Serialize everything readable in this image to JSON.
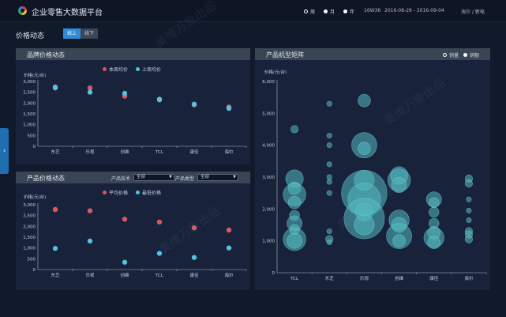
{
  "header": {
    "title": "企业零售大数据平台",
    "periods": [
      {
        "label": "周",
        "selected": true
      },
      {
        "label": "月",
        "selected": false
      },
      {
        "label": "年",
        "selected": false
      }
    ],
    "week_code": "16W36",
    "date_range": "2016-08-29 - 2016-09-04",
    "region": "海尔 / 新电"
  },
  "page": {
    "title": "价格动态",
    "online_label": "线上",
    "offline_label": "线下"
  },
  "colors": {
    "red": "#e0525c",
    "blue": "#4cc4e6",
    "bubble": "#53b9c1"
  },
  "brand_panel": {
    "title": "品牌价格动态",
    "legend_current": "本周均价",
    "legend_last": "上周均价",
    "ylabel": "价格(元/台)"
  },
  "product_panel": {
    "title": "产品价格动态",
    "tech_label": "产品技术",
    "tech_value": "全部",
    "type_label": "产品类型",
    "type_value": "全部",
    "legend_avg": "平均价格",
    "legend_min": "最低价格",
    "ylabel": "价格(元/台)"
  },
  "matrix_panel": {
    "title": "产品机型矩阵",
    "legend_sales": "销量",
    "legend_amount": "销额",
    "ylabel": "价格(元/台)"
  },
  "watermark": "奥维万象出品",
  "chart_data": [
    {
      "type": "scatter",
      "title": "品牌价格动态",
      "ylabel": "价格(元/台)",
      "ylim": [
        0,
        3000
      ],
      "yticks": [
        "0",
        "500",
        "1,000",
        "1,500",
        "2,000",
        "2,500",
        "3,000"
      ],
      "categories": [
        "东芝",
        "乐视",
        "创维",
        "TCL",
        "康佳",
        "海尔"
      ],
      "series": [
        {
          "name": "本周均价",
          "values": [
            2750,
            2700,
            2320,
            2180,
            1920,
            1820
          ]
        },
        {
          "name": "上周均价",
          "values": [
            2700,
            2500,
            2450,
            2150,
            1950,
            1750
          ]
        }
      ]
    },
    {
      "type": "scatter",
      "title": "产品价格动态",
      "ylabel": "价格(元/台)",
      "ylim": [
        0,
        3000
      ],
      "yticks": [
        "0",
        "500",
        "1,000",
        "1,500",
        "2,000",
        "2,500",
        "3,000"
      ],
      "categories": [
        "东芝",
        "乐视",
        "创维",
        "TCL",
        "康佳",
        "海尔"
      ],
      "series": [
        {
          "name": "平均价格",
          "values": [
            2780,
            2720,
            2330,
            2200,
            1930,
            1830
          ]
        },
        {
          "name": "最低价格",
          "values": [
            980,
            1320,
            340,
            750,
            560,
            1000
          ]
        }
      ]
    },
    {
      "type": "scatter",
      "title": "产品机型矩阵",
      "ylabel": "价格(元/台)",
      "ylim": [
        0,
        6000
      ],
      "yticks": [
        "0",
        "1,000",
        "2,000",
        "3,000",
        "4,000",
        "5,000",
        "6,000"
      ],
      "categories": [
        "TCL",
        "东芝",
        "乐视",
        "创维",
        "康佳",
        "海尔"
      ],
      "points": [
        {
          "cat": 0,
          "y": 4500,
          "size": 3
        },
        {
          "cat": 0,
          "y": 2950,
          "size": 7
        },
        {
          "cat": 0,
          "y": 2650,
          "size": 5
        },
        {
          "cat": 0,
          "y": 2450,
          "size": 9
        },
        {
          "cat": 0,
          "y": 2200,
          "size": 5
        },
        {
          "cat": 0,
          "y": 1800,
          "size": 4
        },
        {
          "cat": 0,
          "y": 1550,
          "size": 6
        },
        {
          "cat": 0,
          "y": 1350,
          "size": 4
        },
        {
          "cat": 0,
          "y": 1050,
          "size": 9
        },
        {
          "cat": 0,
          "y": 1000,
          "size": 6
        },
        {
          "cat": 1,
          "y": 5300,
          "size": 2
        },
        {
          "cat": 1,
          "y": 4300,
          "size": 2
        },
        {
          "cat": 1,
          "y": 4000,
          "size": 2
        },
        {
          "cat": 1,
          "y": 3400,
          "size": 2
        },
        {
          "cat": 1,
          "y": 3000,
          "size": 2
        },
        {
          "cat": 1,
          "y": 2850,
          "size": 2
        },
        {
          "cat": 1,
          "y": 2500,
          "size": 2
        },
        {
          "cat": 1,
          "y": 1300,
          "size": 2
        },
        {
          "cat": 1,
          "y": 1050,
          "size": 3
        },
        {
          "cat": 1,
          "y": 950,
          "size": 2
        },
        {
          "cat": 2,
          "y": 5400,
          "size": 5
        },
        {
          "cat": 2,
          "y": 4000,
          "size": 10
        },
        {
          "cat": 2,
          "y": 3900,
          "size": 5
        },
        {
          "cat": 2,
          "y": 2900,
          "size": 8
        },
        {
          "cat": 2,
          "y": 2500,
          "size": 18
        },
        {
          "cat": 2,
          "y": 2300,
          "size": 13
        },
        {
          "cat": 2,
          "y": 1900,
          "size": 7
        },
        {
          "cat": 2,
          "y": 1700,
          "size": 16
        },
        {
          "cat": 2,
          "y": 1500,
          "size": 8
        },
        {
          "cat": 3,
          "y": 3050,
          "size": 7
        },
        {
          "cat": 3,
          "y": 2900,
          "size": 9
        },
        {
          "cat": 3,
          "y": 2750,
          "size": 6
        },
        {
          "cat": 3,
          "y": 1650,
          "size": 8
        },
        {
          "cat": 3,
          "y": 1500,
          "size": 6
        },
        {
          "cat": 3,
          "y": 1150,
          "size": 10
        },
        {
          "cat": 3,
          "y": 1000,
          "size": 5
        },
        {
          "cat": 4,
          "y": 2300,
          "size": 6
        },
        {
          "cat": 4,
          "y": 2200,
          "size": 4
        },
        {
          "cat": 4,
          "y": 1900,
          "size": 4
        },
        {
          "cat": 4,
          "y": 1550,
          "size": 4
        },
        {
          "cat": 4,
          "y": 1250,
          "size": 5
        },
        {
          "cat": 4,
          "y": 1100,
          "size": 8
        },
        {
          "cat": 4,
          "y": 950,
          "size": 5
        },
        {
          "cat": 5,
          "y": 2950,
          "size": 3
        },
        {
          "cat": 5,
          "y": 2800,
          "size": 3
        },
        {
          "cat": 5,
          "y": 2300,
          "size": 2
        },
        {
          "cat": 5,
          "y": 1950,
          "size": 2
        },
        {
          "cat": 5,
          "y": 1650,
          "size": 2
        },
        {
          "cat": 5,
          "y": 1300,
          "size": 3
        },
        {
          "cat": 5,
          "y": 1200,
          "size": 3
        },
        {
          "cat": 5,
          "y": 1050,
          "size": 3
        }
      ]
    }
  ]
}
